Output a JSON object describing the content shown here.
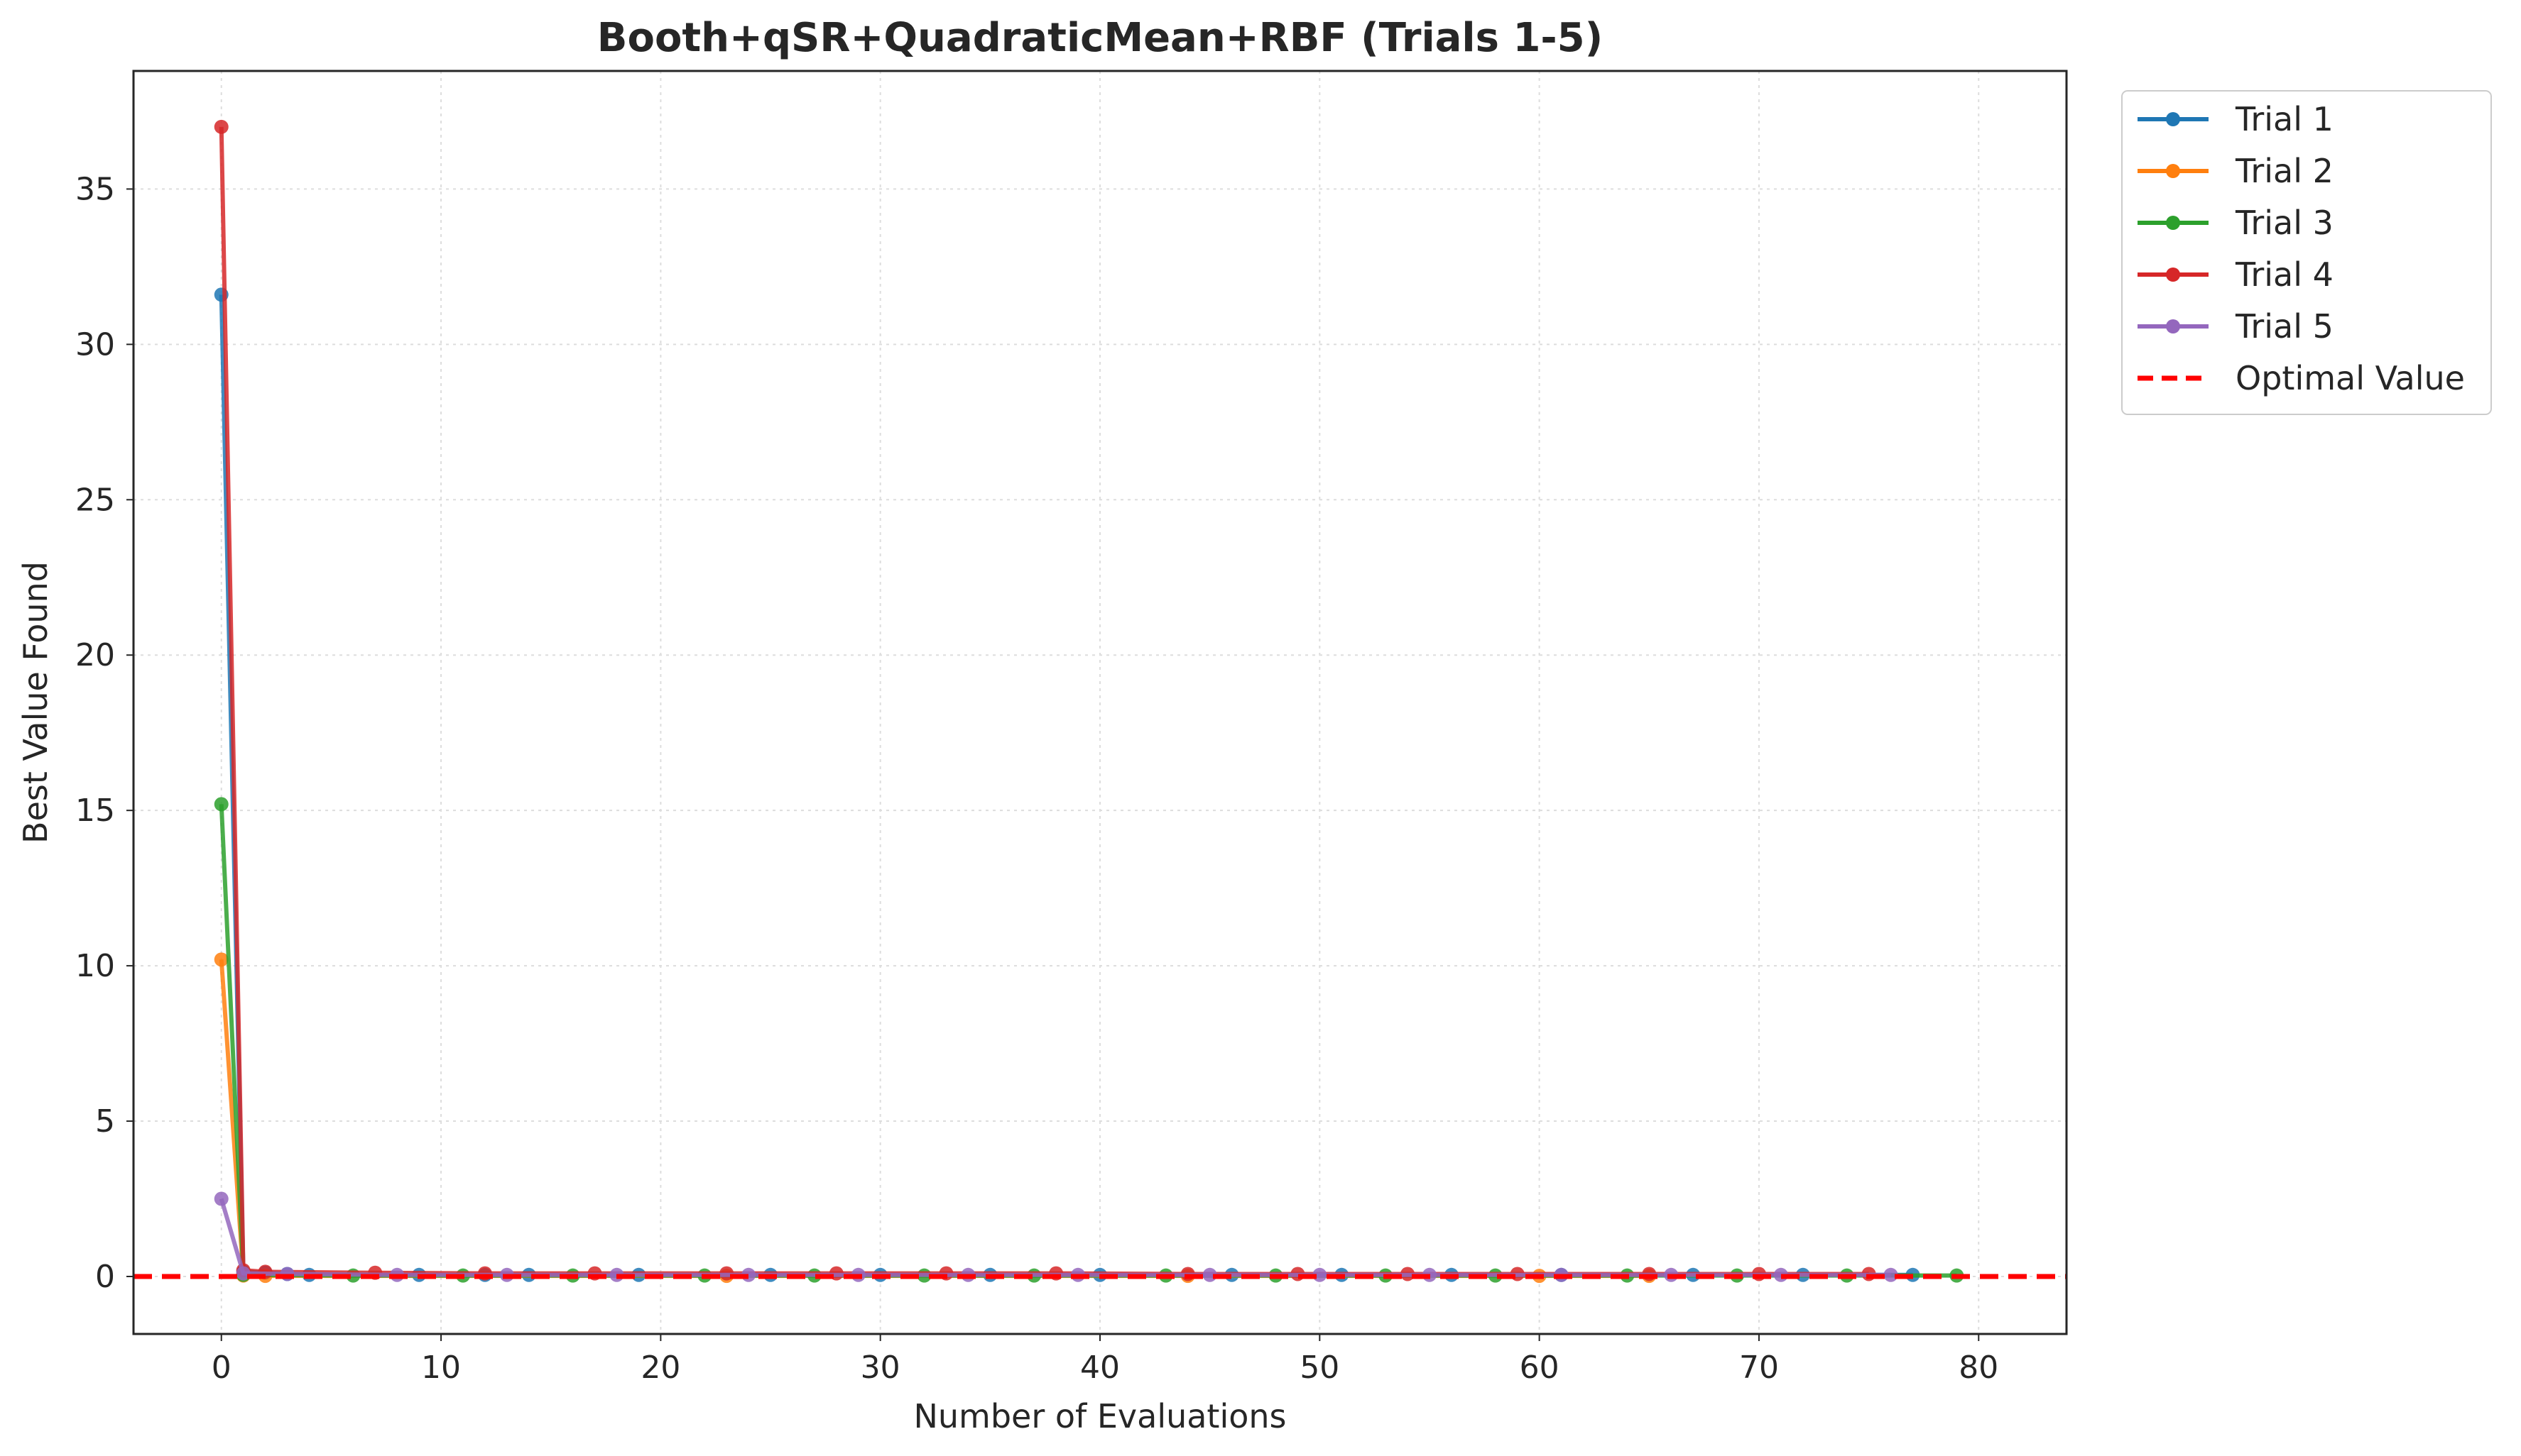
{
  "chart_data": {
    "type": "line",
    "title": "Booth+qSR+QuadraticMean+RBF (Trials 1-5)",
    "xlabel": "Number of Evaluations",
    "ylabel": "Best Value Found",
    "xlim": [
      -4,
      84
    ],
    "ylim": [
      -1.85,
      38.8
    ],
    "xticks": [
      "0",
      "10",
      "20",
      "30",
      "40",
      "50",
      "60",
      "70",
      "80"
    ],
    "yticks": [
      "0",
      "5",
      "10",
      "15",
      "20",
      "25",
      "30",
      "35"
    ],
    "grid": true,
    "legend_position": "outside-top-right",
    "series": [
      {
        "name": "Trial 1",
        "color": "#1f77b4",
        "x": [
          0,
          1,
          2,
          3,
          4,
          9,
          12,
          14,
          19,
          25,
          30,
          35,
          40,
          46,
          51,
          56,
          61,
          67,
          72,
          77
        ],
        "y": [
          31.6,
          0.15,
          0.12,
          0.08,
          0.05,
          0.05,
          0.05,
          0.05,
          0.05,
          0.05,
          0.05,
          0.05,
          0.05,
          0.05,
          0.05,
          0.05,
          0.05,
          0.05,
          0.05,
          0.05
        ]
      },
      {
        "name": "Trial 2",
        "color": "#ff7f0e",
        "x": [
          0,
          1,
          2,
          23,
          44,
          60,
          65
        ],
        "y": [
          10.2,
          0.03,
          0.02,
          0.02,
          0.02,
          0.02,
          0.02
        ]
      },
      {
        "name": "Trial 3",
        "color": "#2ca02c",
        "x": [
          0,
          1,
          6,
          11,
          16,
          22,
          27,
          32,
          37,
          43,
          48,
          53,
          58,
          64,
          69,
          74,
          79
        ],
        "y": [
          15.2,
          0.05,
          0.03,
          0.03,
          0.03,
          0.03,
          0.03,
          0.03,
          0.03,
          0.03,
          0.03,
          0.03,
          0.03,
          0.03,
          0.03,
          0.03,
          0.03
        ]
      },
      {
        "name": "Trial 4",
        "color": "#d62728",
        "x": [
          0,
          1,
          2,
          7,
          12,
          17,
          23,
          28,
          33,
          38,
          44,
          49,
          54,
          59,
          65,
          70,
          75
        ],
        "y": [
          37.0,
          0.2,
          0.15,
          0.12,
          0.1,
          0.1,
          0.1,
          0.1,
          0.1,
          0.1,
          0.08,
          0.08,
          0.08,
          0.08,
          0.08,
          0.08,
          0.08
        ]
      },
      {
        "name": "Trial 5",
        "color": "#9467bd",
        "x": [
          0,
          1,
          3,
          8,
          13,
          18,
          24,
          29,
          34,
          39,
          45,
          50,
          55,
          61,
          66,
          71,
          76
        ],
        "y": [
          2.5,
          0.1,
          0.08,
          0.05,
          0.05,
          0.05,
          0.05,
          0.05,
          0.05,
          0.05,
          0.05,
          0.05,
          0.05,
          0.05,
          0.05,
          0.05,
          0.05
        ]
      }
    ],
    "reference_line": {
      "name": "Optimal Value",
      "y": 0,
      "color": "#ff0000",
      "style": "dashed"
    }
  }
}
